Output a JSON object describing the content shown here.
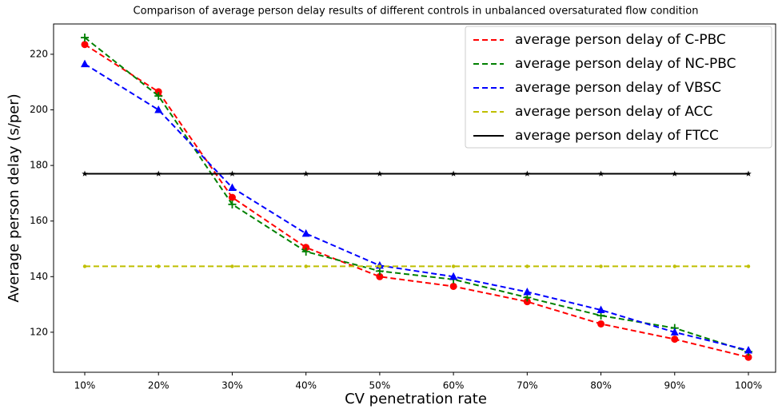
{
  "chart_data": {
    "type": "line",
    "title": "Comparison of average person delay results of different controls in unbalanced oversaturated flow condition",
    "x_label": "CV penetration rate",
    "y_label": "Average person delay (s/per)",
    "categories": [
      "10%",
      "20%",
      "30%",
      "40%",
      "50%",
      "60%",
      "70%",
      "80%",
      "90%",
      "100%"
    ],
    "ylim": [
      105.6,
      230.9
    ],
    "yticks": [
      120,
      140,
      160,
      180,
      200,
      220
    ],
    "legend": "upper right",
    "series": [
      {
        "name": "average person delay of C-PBC",
        "color": "#ff0000",
        "linestyle": "dashed",
        "marker": "circle",
        "values": [
          223.5,
          206.5,
          168.5,
          150.5,
          140,
          136.5,
          131,
          123,
          117.5,
          111
        ]
      },
      {
        "name": "average person delay of NC-PBC",
        "color": "#008000",
        "linestyle": "dashed",
        "marker": "plus",
        "values": [
          226,
          205,
          166,
          149,
          142,
          139,
          132.5,
          126,
          121.5,
          113
        ]
      },
      {
        "name": "average person delay of VBSC",
        "color": "#0000ff",
        "linestyle": "dashed",
        "marker": "triangle",
        "values": [
          216.5,
          200,
          172,
          155.5,
          144,
          140,
          134.5,
          128,
          120,
          113.5
        ]
      },
      {
        "name": "average person delay of ACC",
        "color": "#bfbf00",
        "linestyle": "dashed",
        "marker": "dot",
        "values": [
          143.7,
          143.7,
          143.7,
          143.7,
          143.7,
          143.7,
          143.7,
          143.7,
          143.7,
          143.7
        ]
      },
      {
        "name": "average person delay of FTCC",
        "color": "#000000",
        "linestyle": "solid",
        "marker": "star",
        "values": [
          177,
          177,
          177,
          177,
          177,
          177,
          177,
          177,
          177,
          177
        ]
      }
    ]
  }
}
